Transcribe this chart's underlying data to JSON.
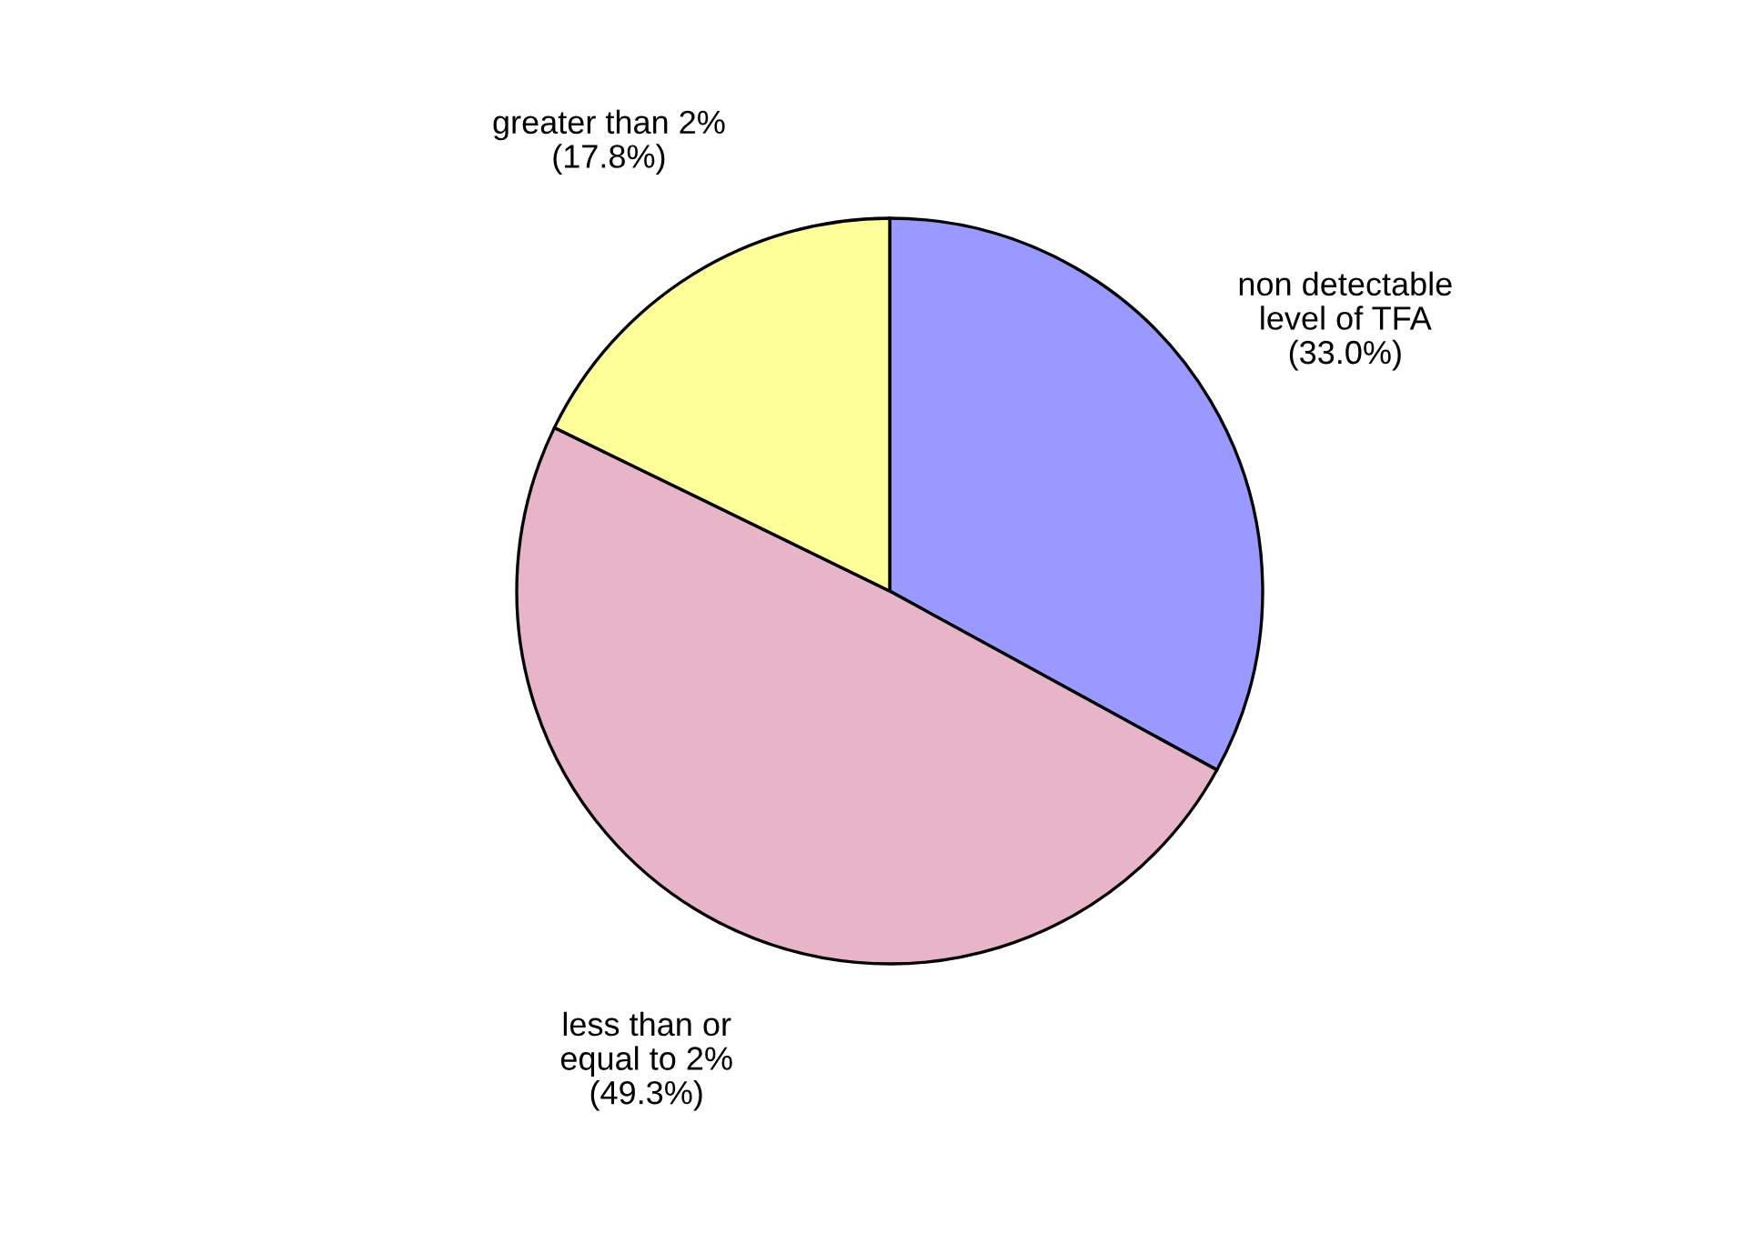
{
  "chart_data": {
    "type": "pie",
    "categories": [
      "non detectable\nlevel of TFA",
      "less than or\nequal to 2%",
      "greater than 2%"
    ],
    "values": [
      33.0,
      49.3,
      17.8
    ],
    "value_labels": [
      "(33.0%)",
      "(49.3%)",
      "(17.8%)"
    ],
    "colors": [
      "#9999ff",
      "#e8b4c8",
      "#ffff99"
    ],
    "legend": false
  }
}
